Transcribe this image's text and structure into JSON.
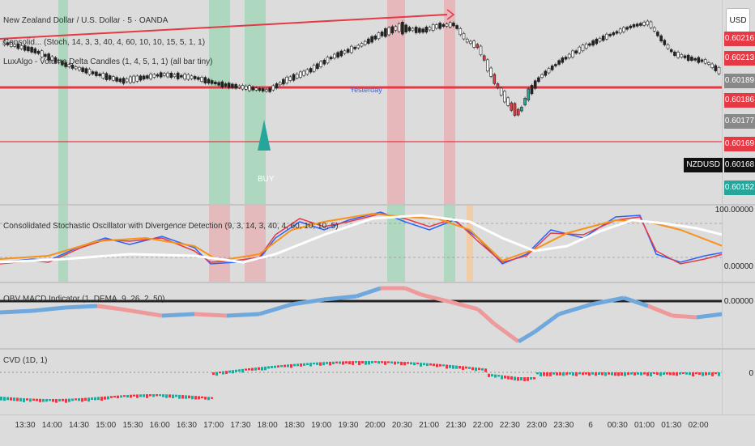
{
  "header": {
    "symbol_title": "New Zealand Dollar / U.S. Dollar · 5 · OANDA",
    "indicator1": "Consolid... (Stoch, 14, 3, 3, 40, 4, 60, 10, 10, 15, 5, 1, 1)",
    "indicator2": "LuxAlgo - Volume Delta Candles (1, 4, 5, 1, 1) (all bar tiny)"
  },
  "price_axis": {
    "currency_button": "USD",
    "labels": [
      {
        "text": "0.60216",
        "color": "#e53945"
      },
      {
        "text": "0.60213",
        "color": "#e53945"
      },
      {
        "text": "0.60189",
        "color": "#888888"
      },
      {
        "text": "0.60186",
        "color": "#e53945"
      },
      {
        "text": "0.60177",
        "color": "#888888"
      },
      {
        "text": "0.60169",
        "color": "#e53945"
      },
      {
        "text": "0.60168",
        "color": "#111111"
      },
      {
        "text": "0.60152",
        "color": "#26a69a"
      }
    ],
    "symbol_tag": "NZDUSD"
  },
  "chart": {
    "yesterday_label": "Yesterday",
    "buy_label": "BUY"
  },
  "oscillator": {
    "title": "Consolidated Stochastic Oscillator with Divergence Detection (9, 3, 14, 3, 40, 4, 60, 10, 10, 5)",
    "top_value": "100.00000",
    "bottom_value": "0.00000"
  },
  "obv_macd": {
    "title": "OBV MACD Indicator (1, DEMA, 9, 26, 2, 50)",
    "value": "0.00000"
  },
  "cvd": {
    "title": "CVD (1D, 1)",
    "value": "0"
  },
  "time_axis": [
    "13:30",
    "14:00",
    "14:30",
    "15:00",
    "15:30",
    "16:00",
    "16:30",
    "17:00",
    "17:30",
    "18:00",
    "18:30",
    "19:00",
    "19:30",
    "20:00",
    "20:30",
    "21:00",
    "21:30",
    "22:00",
    "22:30",
    "23:00",
    "23:30",
    "6",
    "00:30",
    "01:00",
    "01:30",
    "02:00"
  ],
  "colors": {
    "bull": "#26a69a",
    "bear": "#e53945",
    "green_band": "#a5d6b8",
    "red_band": "#e7b1b5",
    "stoch_blue": "#2962ff",
    "stoch_red": "#e53945",
    "stoch_orange": "#f7931a",
    "obv_blue": "#6fa8dc",
    "obv_red": "#ef9a9a"
  }
}
